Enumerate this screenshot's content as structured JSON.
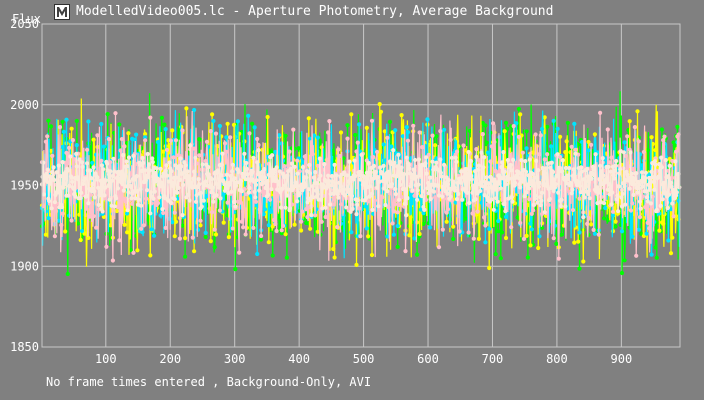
{
  "window": {
    "title": "ModelledVideo005.lc - Aperture Photometry, Average Background",
    "icon": "lightcurve-app-icon"
  },
  "footer": {
    "status": "No frame times entered , Background-Only, AVI"
  },
  "chart_data": {
    "type": "line",
    "ylabel": "Flux",
    "xlabel": "",
    "xlim": [
      1,
      991
    ],
    "ylim": [
      1850,
      2050
    ],
    "x_ticks": [
      100,
      200,
      300,
      400,
      500,
      600,
      700,
      800,
      900
    ],
    "y_ticks": [
      1850,
      1900,
      1950,
      2000,
      2050
    ],
    "grid": true,
    "background": "#808080",
    "grid_color": "#c8c8c8",
    "n_points": 990,
    "series": [
      {
        "color": "#00ff00",
        "mean": 1950,
        "spread": 30,
        "seed": 11
      },
      {
        "color": "#ffff00",
        "mean": 1950,
        "spread": 29,
        "seed": 23
      },
      {
        "color": "#00e5ff",
        "mean": 1952,
        "spread": 26,
        "seed": 37
      },
      {
        "color": "#ffc0cb",
        "mean": 1950,
        "spread": 27,
        "seed": 51
      },
      {
        "color": "#fbeadc",
        "mean": 1952,
        "spread": 12,
        "seed": 71
      }
    ]
  }
}
